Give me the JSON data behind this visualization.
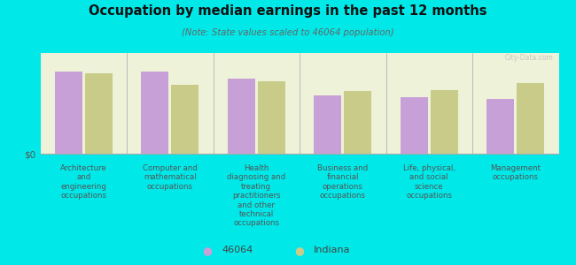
{
  "title": "Occupation by median earnings in the past 12 months",
  "subtitle": "(Note: State values scaled to 46064 population)",
  "background_color": "#00e8e8",
  "plot_bg_color": "#eef2d8",
  "bar_color_46064": "#c8a0d8",
  "bar_color_indiana": "#c8cc88",
  "categories": [
    "Architecture\nand\nengineering\noccupations",
    "Computer and\nmathematical\noccupations",
    "Health\ndiagnosing and\ntreating\npractitioners\nand other\ntechnical\noccupations",
    "Business and\nfinancial\noperations\noccupations",
    "Life, physical,\nand social\nscience\noccupations",
    "Management\noccupations"
  ],
  "values_46064": [
    0.82,
    0.82,
    0.75,
    0.58,
    0.56,
    0.54
  ],
  "values_indiana": [
    0.8,
    0.68,
    0.72,
    0.62,
    0.63,
    0.7
  ],
  "ylabel": "$0",
  "legend_46064": "46064",
  "legend_indiana": "Indiana",
  "watermark": "City-Data.com"
}
